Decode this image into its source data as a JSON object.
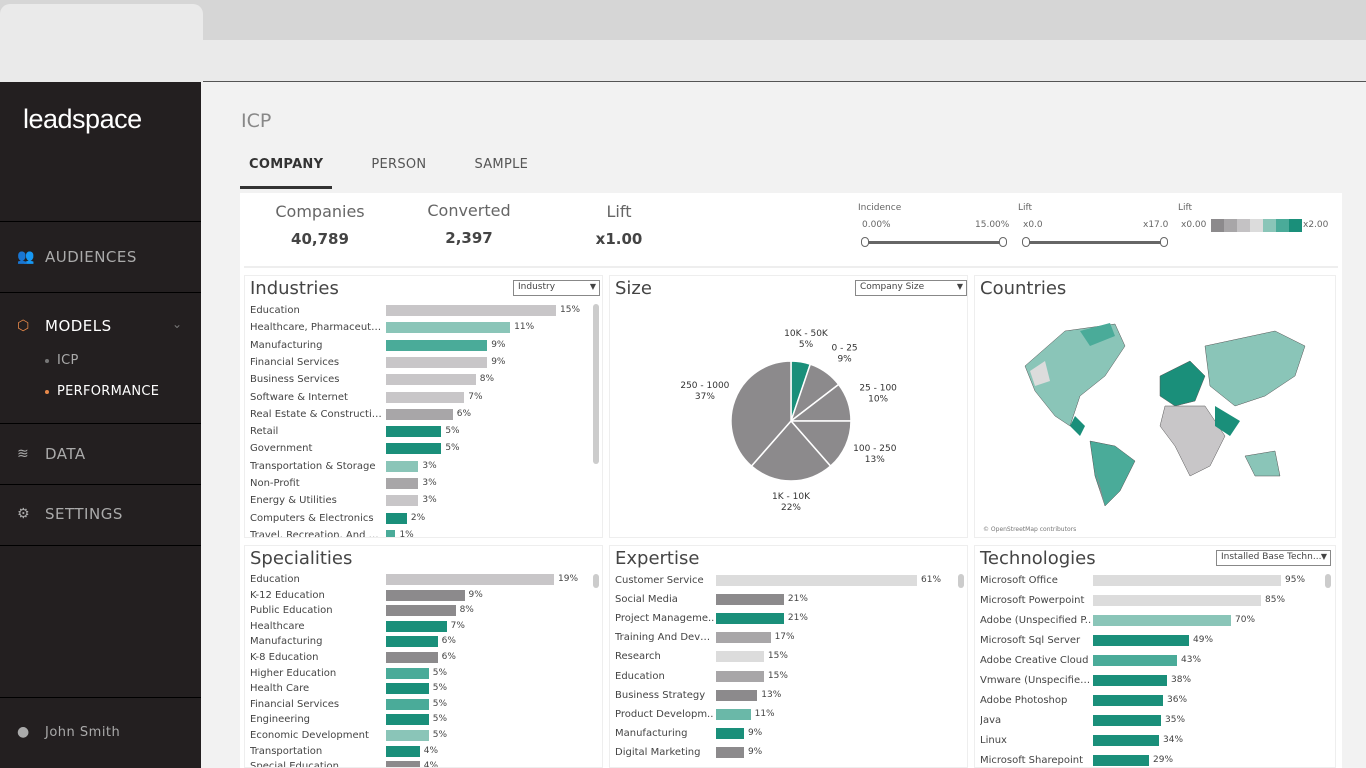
{
  "sidebar": {
    "logo": "leadspace",
    "items": [
      {
        "label": "AUDIENCES",
        "icon": "users-icon"
      },
      {
        "label": "MODELS",
        "icon": "cube-network-icon"
      },
      {
        "label": "DATA",
        "icon": "layers-icon"
      },
      {
        "label": "SETTINGS",
        "icon": "gear-icon"
      }
    ],
    "sub_items": [
      {
        "label": "ICP"
      },
      {
        "label": "PERFORMANCE"
      }
    ],
    "user": "John Smith"
  },
  "header": {
    "title": "ICP",
    "tabs": [
      {
        "label": "COMPANY"
      },
      {
        "label": "PERSON"
      },
      {
        "label": "SAMPLE"
      }
    ]
  },
  "stats": [
    {
      "label": "Companies",
      "value": "40,789"
    },
    {
      "label": "Converted",
      "value": "2,397"
    },
    {
      "label": "Lift",
      "value": "x1.00"
    }
  ],
  "filters": {
    "incidence": {
      "label": "Incidence",
      "min": "0.00%",
      "max": "15.00%"
    },
    "lift": {
      "label": "Lift",
      "min": "x0.0",
      "max": "x17.0"
    },
    "lift_legend": {
      "label": "Lift",
      "min": "x0.00",
      "max": "x2.00",
      "colors": [
        "#8c8a8c",
        "#a8a6a8",
        "#c4c2c4",
        "#dcdcdc",
        "#8ac5b8",
        "#4aab99",
        "#1a8f7a"
      ]
    }
  },
  "colors": {
    "accent": "#e8894a",
    "teal": "#1a8f7a"
  },
  "industries": {
    "title": "Industries",
    "dropdown": "Industry",
    "items": [
      {
        "label": "Education",
        "value": 15,
        "pct": "15%",
        "color": "#c8c6c8"
      },
      {
        "label": "Healthcare, Pharmaceutic..",
        "value": 11,
        "pct": "11%",
        "color": "#8ac5b8"
      },
      {
        "label": "Manufacturing",
        "value": 9,
        "pct": "9%",
        "color": "#4aab99"
      },
      {
        "label": "Financial Services",
        "value": 9,
        "pct": "9%",
        "color": "#c8c6c8"
      },
      {
        "label": "Business Services",
        "value": 8,
        "pct": "8%",
        "color": "#c8c6c8"
      },
      {
        "label": "Software & Internet",
        "value": 7,
        "pct": "7%",
        "color": "#c8c6c8"
      },
      {
        "label": "Real Estate & Construction",
        "value": 6,
        "pct": "6%",
        "color": "#a8a6a8"
      },
      {
        "label": "Retail",
        "value": 5,
        "pct": "5%",
        "color": "#1a8f7a"
      },
      {
        "label": "Government",
        "value": 5,
        "pct": "5%",
        "color": "#1a8f7a"
      },
      {
        "label": "Transportation & Storage",
        "value": 3,
        "pct": "3%",
        "color": "#8ac5b8"
      },
      {
        "label": "Non-Profit",
        "value": 3,
        "pct": "3%",
        "color": "#a8a6a8"
      },
      {
        "label": "Energy & Utilities",
        "value": 3,
        "pct": "3%",
        "color": "#c8c6c8"
      },
      {
        "label": "Computers & Electronics",
        "value": 2,
        "pct": "2%",
        "color": "#1a8f7a"
      },
      {
        "label": "Travel, Recreation, And Lei..",
        "value": 1,
        "pct": "1%",
        "color": "#4aab99"
      }
    ]
  },
  "size": {
    "title": "Size",
    "dropdown": "Company Size",
    "slices": [
      {
        "label": "10K - 50K",
        "value": 5,
        "pct": "5%",
        "color": "#1a8f7a"
      },
      {
        "label": "0 - 25",
        "value": 9,
        "pct": "9%",
        "color": "#8c8a8c"
      },
      {
        "label": "25 - 100",
        "value": 10,
        "pct": "10%",
        "color": "#8c8a8c"
      },
      {
        "label": "100 - 250",
        "value": 13,
        "pct": "13%",
        "color": "#8c8a8c"
      },
      {
        "label": "1K - 10K",
        "value": 22,
        "pct": "22%",
        "color": "#8c8a8c"
      },
      {
        "label": "250 - 1000",
        "value": 37,
        "pct": "37%",
        "color": "#8c8a8c"
      }
    ]
  },
  "countries": {
    "title": "Countries",
    "credit": "© OpenStreetMap contributors"
  },
  "specialities": {
    "title": "Specialities",
    "items": [
      {
        "label": "Education",
        "value": 19,
        "pct": "19%",
        "color": "#c8c6c8"
      },
      {
        "label": "K-12 Education",
        "value": 9,
        "pct": "9%",
        "color": "#8c8a8c"
      },
      {
        "label": "Public Education",
        "value": 8,
        "pct": "8%",
        "color": "#8c8a8c"
      },
      {
        "label": "Healthcare",
        "value": 7,
        "pct": "7%",
        "color": "#1a8f7a"
      },
      {
        "label": "Manufacturing",
        "value": 6,
        "pct": "6%",
        "color": "#1a8f7a"
      },
      {
        "label": "K-8 Education",
        "value": 6,
        "pct": "6%",
        "color": "#8c8a8c"
      },
      {
        "label": "Higher Education",
        "value": 5,
        "pct": "5%",
        "color": "#4aab99"
      },
      {
        "label": "Health Care",
        "value": 5,
        "pct": "5%",
        "color": "#1a8f7a"
      },
      {
        "label": "Financial Services",
        "value": 5,
        "pct": "5%",
        "color": "#4aab99"
      },
      {
        "label": "Engineering",
        "value": 5,
        "pct": "5%",
        "color": "#1a8f7a"
      },
      {
        "label": "Economic Development",
        "value": 5,
        "pct": "5%",
        "color": "#8ac5b8"
      },
      {
        "label": "Transportation",
        "value": 4,
        "pct": "4%",
        "color": "#1a8f7a"
      },
      {
        "label": "Special Education",
        "value": 4,
        "pct": "4%",
        "color": "#8c8a8c"
      }
    ]
  },
  "expertise": {
    "title": "Expertise",
    "items": [
      {
        "label": "Customer Service",
        "value": 61,
        "pct": "61%",
        "color": "#dcdcdc"
      },
      {
        "label": "Social Media",
        "value": 21,
        "pct": "21%",
        "color": "#8c8a8c"
      },
      {
        "label": "Project Manageme..",
        "value": 21,
        "pct": "21%",
        "color": "#1a8f7a"
      },
      {
        "label": "Training And Devel..",
        "value": 17,
        "pct": "17%",
        "color": "#a8a6a8"
      },
      {
        "label": "Research",
        "value": 15,
        "pct": "15%",
        "color": "#dcdcdc"
      },
      {
        "label": "Education",
        "value": 15,
        "pct": "15%",
        "color": "#a8a6a8"
      },
      {
        "label": "Business Strategy",
        "value": 13,
        "pct": "13%",
        "color": "#8c8a8c"
      },
      {
        "label": "Product Developm..",
        "value": 11,
        "pct": "11%",
        "color": "#6ab8a8"
      },
      {
        "label": "Manufacturing",
        "value": 9,
        "pct": "9%",
        "color": "#1a8f7a"
      },
      {
        "label": "Digital Marketing",
        "value": 9,
        "pct": "9%",
        "color": "#8c8a8c"
      }
    ]
  },
  "technologies": {
    "title": "Technologies",
    "dropdown": "Installed Base Techn...",
    "items": [
      {
        "label": "Microsoft Office",
        "value": 95,
        "pct": "95%",
        "color": "#dcdcdc"
      },
      {
        "label": "Microsoft Powerpoint",
        "value": 85,
        "pct": "85%",
        "color": "#dcdcdc"
      },
      {
        "label": "Adobe (Unspecified P..",
        "value": 70,
        "pct": "70%",
        "color": "#8ac5b8"
      },
      {
        "label": "Microsoft Sql Server",
        "value": 49,
        "pct": "49%",
        "color": "#1a8f7a"
      },
      {
        "label": "Adobe Creative Cloud",
        "value": 43,
        "pct": "43%",
        "color": "#4aab99"
      },
      {
        "label": "Vmware (Unspecified..",
        "value": 38,
        "pct": "38%",
        "color": "#1a8f7a"
      },
      {
        "label": "Adobe Photoshop",
        "value": 36,
        "pct": "36%",
        "color": "#1a8f7a"
      },
      {
        "label": "Java",
        "value": 35,
        "pct": "35%",
        "color": "#1a8f7a"
      },
      {
        "label": "Linux",
        "value": 34,
        "pct": "34%",
        "color": "#1a8f7a"
      },
      {
        "label": "Microsoft Sharepoint",
        "value": 29,
        "pct": "29%",
        "color": "#1a8f7a"
      }
    ]
  }
}
